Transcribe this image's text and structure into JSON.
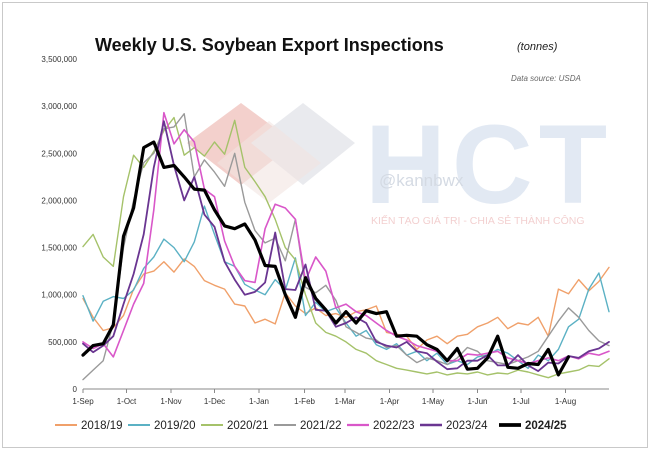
{
  "chart_data": {
    "type": "line",
    "title": "Weekly U.S. Soybean Export Inspections",
    "title_units": "(tonnes)",
    "source": "Data source: USDA",
    "watermark": {
      "brand": "HCT",
      "handle": "@kannbwx",
      "slogan": "KIẾN TẠO GIÁ TRỊ - CHIA SẺ THÀNH CÔNG"
    },
    "xlabel": "",
    "ylabel": "",
    "ylim": [
      0,
      3500000
    ],
    "xlim": [
      0,
      52
    ],
    "grid": false,
    "legend_position": "bottom",
    "y_ticks": [
      {
        "value": 0,
        "label": "0"
      },
      {
        "value": 500000,
        "label": "500,000"
      },
      {
        "value": 1000000,
        "label": "1,000,000"
      },
      {
        "value": 1500000,
        "label": "1,500,000"
      },
      {
        "value": 2000000,
        "label": "2,000,000"
      },
      {
        "value": 2500000,
        "label": "2,500,000"
      },
      {
        "value": 3000000,
        "label": "3,000,000"
      },
      {
        "value": 3500000,
        "label": "3,500,000"
      }
    ],
    "x_ticks": [
      {
        "value": 0,
        "label": "1-Sep"
      },
      {
        "value": 4.3,
        "label": "1-Oct"
      },
      {
        "value": 8.7,
        "label": "1-Nov"
      },
      {
        "value": 13,
        "label": "1-Dec"
      },
      {
        "value": 17.4,
        "label": "1-Jan"
      },
      {
        "value": 21.9,
        "label": "1-Feb"
      },
      {
        "value": 25.9,
        "label": "1-Mar"
      },
      {
        "value": 30.3,
        "label": "1-Apr"
      },
      {
        "value": 34.6,
        "label": "1-May"
      },
      {
        "value": 39,
        "label": "1-Jun"
      },
      {
        "value": 43.3,
        "label": "1-Jul"
      },
      {
        "value": 47.7,
        "label": "1-Aug"
      }
    ],
    "series": [
      {
        "name": "2018/19",
        "color": "#f0a06a",
        "width": 1.4,
        "values": [
          960000,
          760000,
          620000,
          650000,
          780000,
          1060000,
          1220000,
          1250000,
          1350000,
          1240000,
          1380000,
          1300000,
          1150000,
          1100000,
          1060000,
          900000,
          880000,
          700000,
          740000,
          690000,
          1020000,
          880000,
          800000,
          860000,
          780000,
          800000,
          760000,
          820000,
          840000,
          880000,
          600000,
          580000,
          560000,
          420000,
          520000,
          560000,
          480000,
          560000,
          580000,
          660000,
          700000,
          760000,
          640000,
          700000,
          680000,
          760000,
          560000,
          1060000,
          1010000,
          1160000,
          1040000,
          1140000,
          1290000
        ]
      },
      {
        "name": "2019/20",
        "color": "#5bb1c4",
        "width": 1.4,
        "values": [
          990000,
          720000,
          930000,
          980000,
          960000,
          1050000,
          1280000,
          1400000,
          1590000,
          1500000,
          1350000,
          1560000,
          1940000,
          1640000,
          1350000,
          1300000,
          1110000,
          1050000,
          1000000,
          1160000,
          1050000,
          1390000,
          780000,
          920000,
          820000,
          860000,
          700000,
          560000,
          620000,
          470000,
          420000,
          480000,
          360000,
          400000,
          300000,
          380000,
          260000,
          300000,
          260000,
          340000,
          360000,
          420000,
          380000,
          300000,
          220000,
          360000,
          300000,
          420000,
          660000,
          740000,
          1060000,
          1230000,
          820000
        ]
      },
      {
        "name": "2020/21",
        "color": "#a5c26a",
        "width": 1.4,
        "values": [
          1510000,
          1640000,
          1400000,
          1300000,
          2040000,
          2480000,
          2350000,
          2520000,
          2740000,
          2880000,
          2480000,
          2560000,
          2470000,
          2620000,
          2490000,
          2850000,
          2350000,
          2200000,
          2040000,
          1800000,
          1500000,
          1370000,
          1000000,
          700000,
          600000,
          560000,
          500000,
          420000,
          380000,
          300000,
          260000,
          220000,
          200000,
          180000,
          160000,
          180000,
          150000,
          170000,
          160000,
          180000,
          150000,
          170000,
          160000,
          200000,
          180000,
          150000,
          120000,
          160000,
          180000,
          200000,
          250000,
          240000,
          320000
        ]
      },
      {
        "name": "2021/22",
        "color": "#9a9a9a",
        "width": 1.4,
        "values": [
          100000,
          200000,
          300000,
          700000,
          1500000,
          2000000,
          2400000,
          2500000,
          2760000,
          2780000,
          2920000,
          2250000,
          2430000,
          2300000,
          2150000,
          2500000,
          1980000,
          1680000,
          1550000,
          1600000,
          1360000,
          1800000,
          1080000,
          1020000,
          1100000,
          940000,
          660000,
          600000,
          540000,
          520000,
          440000,
          460000,
          360000,
          280000,
          330000,
          300000,
          260000,
          330000,
          440000,
          400000,
          300000,
          280000,
          260000,
          300000,
          340000,
          400000,
          560000,
          720000,
          860000,
          760000,
          620000,
          510000,
          460000
        ]
      },
      {
        "name": "2022/23",
        "color": "#d957c9",
        "width": 1.6,
        "values": [
          500000,
          430000,
          480000,
          340000,
          620000,
          900000,
          1120000,
          1900000,
          2930000,
          2600000,
          2750000,
          2620000,
          2120000,
          2040000,
          1570000,
          1300000,
          1150000,
          1130000,
          1700000,
          1960000,
          1920000,
          1800000,
          1150000,
          1400000,
          1250000,
          860000,
          900000,
          820000,
          780000,
          700000,
          620000,
          560000,
          520000,
          460000,
          430000,
          400000,
          300000,
          300000,
          370000,
          360000,
          380000,
          400000,
          330000,
          300000,
          270000,
          300000,
          330000,
          300000,
          350000,
          320000,
          380000,
          360000,
          400000
        ]
      },
      {
        "name": "2023/24",
        "color": "#6a3591",
        "width": 1.8,
        "values": [
          480000,
          390000,
          460000,
          560000,
          900000,
          1220000,
          1640000,
          2350000,
          2840000,
          2370000,
          2000000,
          2250000,
          1850000,
          1720000,
          1350000,
          1160000,
          1000000,
          1030000,
          1130000,
          1660000,
          1060000,
          1050000,
          1320000,
          840000,
          830000,
          660000,
          700000,
          760000,
          700000,
          500000,
          460000,
          440000,
          500000,
          400000,
          380000,
          290000,
          210000,
          220000,
          300000,
          300000,
          360000,
          250000,
          250000,
          360000,
          250000,
          190000,
          280000,
          270000,
          350000,
          330000,
          400000,
          430000,
          500000
        ]
      },
      {
        "name": "2024/25",
        "color": "#000000",
        "width": 3.2,
        "values": [
          360000,
          460000,
          480000,
          680000,
          1620000,
          1920000,
          2560000,
          2620000,
          2350000,
          2370000,
          2250000,
          2120000,
          2110000,
          1900000,
          1730000,
          1700000,
          1750000,
          1580000,
          1310000,
          1300000,
          1000000,
          760000,
          1180000,
          960000,
          840000,
          700000,
          820000,
          700000,
          830000,
          800000,
          820000,
          560000,
          570000,
          560000,
          470000,
          420000,
          300000,
          430000,
          210000,
          220000,
          330000,
          560000,
          230000,
          220000,
          270000,
          260000,
          420000,
          150000,
          340000,
          null,
          null,
          null,
          null
        ]
      }
    ]
  }
}
